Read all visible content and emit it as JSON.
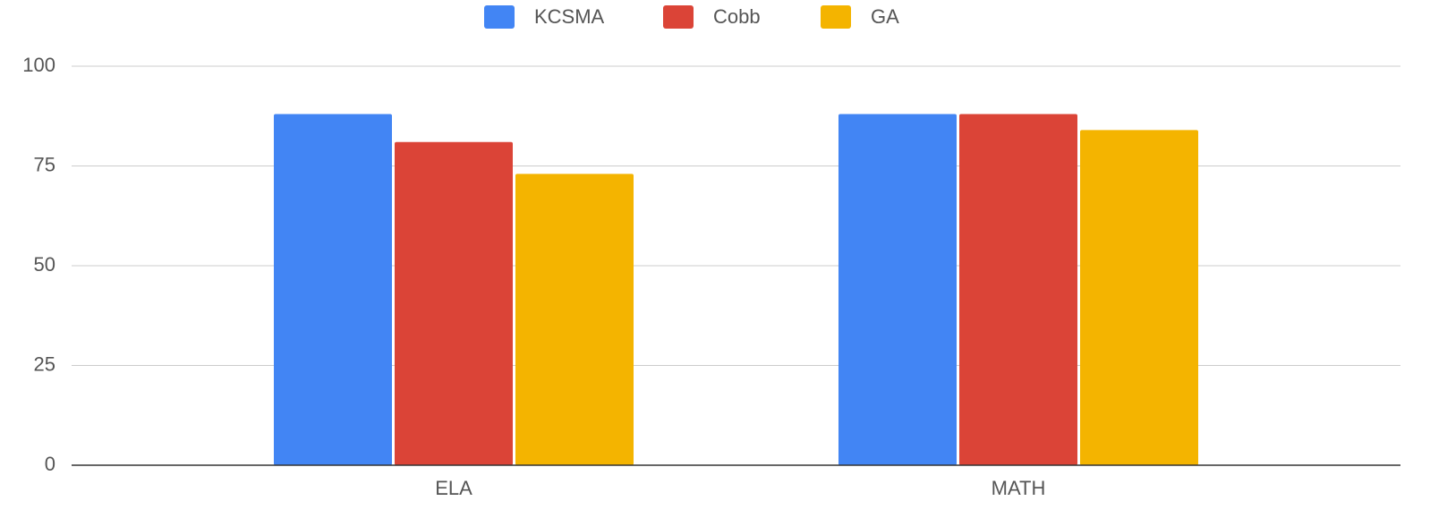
{
  "chart_data": {
    "type": "bar",
    "categories": [
      "ELA",
      "MATH"
    ],
    "series": [
      {
        "name": "KCSMA",
        "color": "#4285f4",
        "values": [
          88,
          88
        ]
      },
      {
        "name": "Cobb",
        "color": "#db4437",
        "values": [
          81,
          88
        ]
      },
      {
        "name": "GA",
        "color": "#f4b400",
        "values": [
          73,
          84
        ]
      }
    ],
    "ylim": [
      0,
      100
    ],
    "yticks": [
      0,
      25,
      50,
      75,
      100
    ],
    "grid": true,
    "legend": "top"
  }
}
